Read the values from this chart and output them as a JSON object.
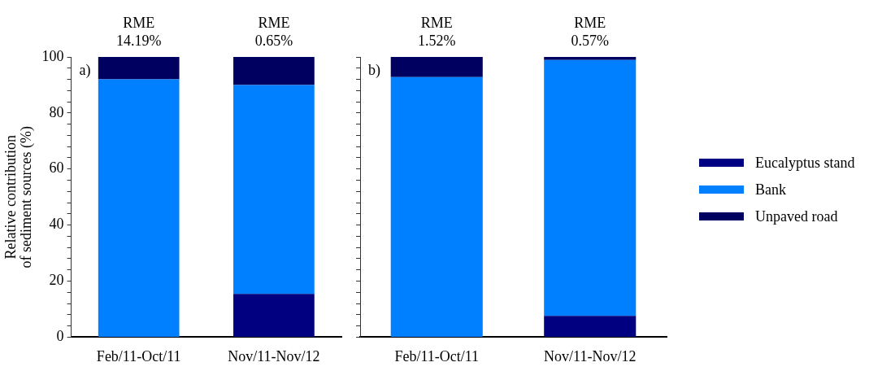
{
  "chart_data": [
    {
      "type": "bar",
      "stacked": true,
      "ylabel": "Relative contribution\nof sediment sources (%)",
      "categories": [
        "Feb/11-Oct/11",
        "Nov/11-Nov/12"
      ],
      "series": [
        {
          "color": "#000080",
          "values": [
            0,
            15.4
          ]
        },
        {
          "color": "#0080ff",
          "values": [
            92,
            74.6
          ]
        },
        {
          "color": "#000060",
          "values": [
            8,
            10
          ]
        }
      ],
      "ylim": [
        0,
        100
      ],
      "yticks": [
        0,
        {
          "value": 4,
          "label": null
        },
        {
          "value": 8,
          "label": null
        },
        {
          "value": 12,
          "label": null
        },
        {
          "value": 16,
          "label": null
        },
        20,
        {
          "value": 24,
          "label": null
        },
        {
          "value": 28,
          "label": null
        },
        {
          "value": 32,
          "label": null
        },
        {
          "value": 36,
          "label": null
        },
        40,
        {
          "value": 44,
          "label": null
        },
        {
          "value": 48,
          "label": null
        },
        {
          "value": 52,
          "label": null
        },
        {
          "value": 56,
          "label": null
        },
        60,
        {
          "value": 64,
          "label": null
        },
        {
          "value": 68,
          "label": null
        },
        {
          "value": 72,
          "label": null
        },
        {
          "value": 76,
          "label": null
        },
        80,
        {
          "value": 84,
          "label": null
        },
        {
          "value": 88,
          "label": null
        },
        {
          "value": 92,
          "label": null
        },
        {
          "value": 96,
          "label": null
        },
        100
      ],
      "grid": false,
      "legend": false,
      "annotations": [
        "a)",
        "RME\n14.19%",
        "RME\n0.65%"
      ]
    },
    {
      "type": "bar",
      "stacked": true,
      "categories": [
        "Feb/11-Oct/11",
        "Nov/11-Nov/12"
      ],
      "series": [
        {
          "name": "Eucalyptus stand",
          "color": "#000080",
          "values": [
            0,
            7.6
          ]
        },
        {
          "name": "Bank",
          "color": "#0080ff",
          "values": [
            92.8,
            91.3
          ]
        },
        {
          "name": "Unpaved road",
          "color": "#000060",
          "values": [
            7.2,
            1.1
          ]
        }
      ],
      "ylim": [
        0,
        100
      ],
      "yticks": [
        0,
        {
          "value": 4,
          "label": null
        },
        {
          "value": 8,
          "label": null
        },
        {
          "value": 12,
          "label": null
        },
        {
          "value": 16,
          "label": null
        },
        {
          "value": 20,
          "label": null
        },
        {
          "value": 24,
          "label": null
        },
        {
          "value": 28,
          "label": null
        },
        {
          "value": 32,
          "label": null
        },
        {
          "value": 36,
          "label": null
        },
        {
          "value": 40,
          "label": null
        },
        {
          "value": 44,
          "label": null
        },
        {
          "value": 48,
          "label": null
        },
        {
          "value": 52,
          "label": null
        },
        {
          "value": 56,
          "label": null
        },
        {
          "value": 60,
          "label": null
        },
        {
          "value": 64,
          "label": null
        },
        {
          "value": 68,
          "label": null
        },
        {
          "value": 72,
          "label": null
        },
        {
          "value": 76,
          "label": null
        },
        {
          "value": 80,
          "label": null
        },
        {
          "value": 84,
          "label": null
        },
        {
          "value": 88,
          "label": null
        },
        {
          "value": 92,
          "label": null
        },
        {
          "value": 96,
          "label": null
        },
        {
          "value": 100,
          "label": null
        }
      ],
      "tick_labels": "x",
      "grid": false,
      "legend": "right",
      "annotations": [
        "b)",
        "RME\n1.52%",
        "RME\n0.57%"
      ]
    }
  ]
}
